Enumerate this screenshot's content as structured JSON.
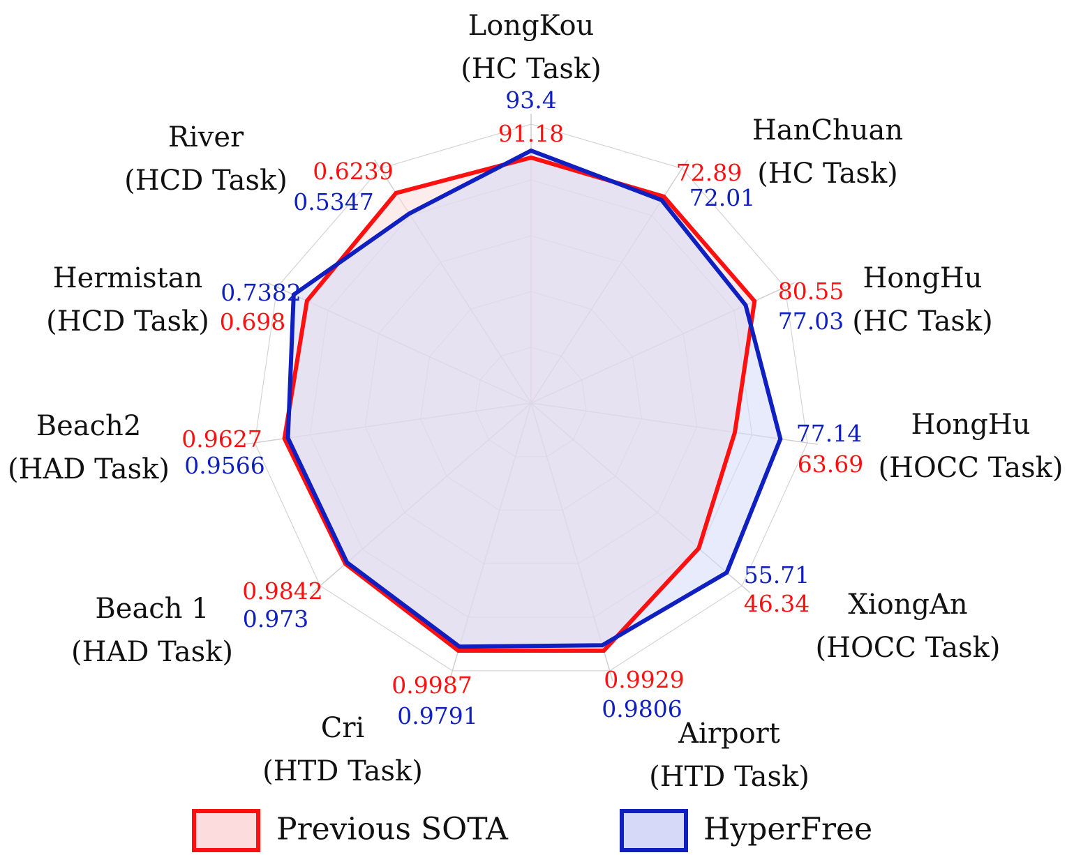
{
  "chart_data": {
    "type": "radar",
    "title": "",
    "axes": [
      {
        "name": "LongKou",
        "task": "(HC Task)"
      },
      {
        "name": "HanChuan",
        "task": "(HC Task)"
      },
      {
        "name": "HongHu",
        "task": "(HC Task)"
      },
      {
        "name": "HongHu",
        "task": "(HOCC Task)"
      },
      {
        "name": "XiongAn",
        "task": "(HOCC Task)"
      },
      {
        "name": "Airport",
        "task": "(HTD Task)"
      },
      {
        "name": "Cri",
        "task": "(HTD Task)"
      },
      {
        "name": "Beach 1",
        "task": "(HAD Task)"
      },
      {
        "name": "Beach2",
        "task": "(HAD Task)"
      },
      {
        "name": "Hermistan",
        "task": "(HCD Task)"
      },
      {
        "name": "River",
        "task": "(HCD Task)"
      }
    ],
    "series": [
      {
        "name": "Previous SOTA",
        "color": "#ff1010",
        "fill": "#fcdcdc",
        "values": [
          91.18,
          72.89,
          80.55,
          63.69,
          46.34,
          0.9929,
          0.9987,
          0.9842,
          0.9627,
          0.698,
          0.6239
        ],
        "labels": [
          "91.18",
          "72.89",
          "80.55",
          "63.69",
          "46.34",
          "0.9929",
          "0.9987",
          "0.9842",
          "0.9627",
          "0.698",
          "0.6239"
        ]
      },
      {
        "name": "HyperFree",
        "color": "#1020c0",
        "fill": "#d6daf8",
        "values": [
          93.4,
          72.01,
          77.03,
          77.14,
          55.71,
          0.9806,
          0.9791,
          0.973,
          0.9566,
          0.7382,
          0.5347
        ],
        "labels": [
          "93.4",
          "72.01",
          "77.03",
          "77.14",
          "55.71",
          "0.9806",
          "0.9791",
          "0.973",
          "0.9566",
          "0.7382",
          "0.5347"
        ]
      }
    ],
    "grid": true,
    "legend": "bottom"
  }
}
